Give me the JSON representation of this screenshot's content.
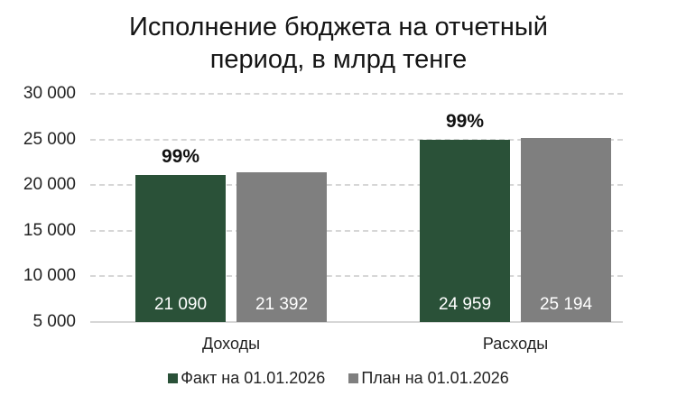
{
  "chart_data": {
    "type": "bar",
    "title": "Исполнение бюджета на отчетный период, в млрд тенге",
    "title_lines": [
      "Исполнение бюджета на отчетный",
      "период, в млрд тенге"
    ],
    "categories": [
      "Доходы",
      "Расходы"
    ],
    "series": [
      {
        "name": "Факт на 01.01.2026",
        "color": "#2a5138",
        "values": [
          21090,
          24959
        ],
        "labels": [
          "21 090",
          "24 959"
        ]
      },
      {
        "name": "План на 01.01.2026",
        "color": "#7f7f7f",
        "values": [
          21392,
          25194
        ],
        "labels": [
          "21 392",
          "25 194"
        ]
      }
    ],
    "annotations": [
      {
        "category": "Доходы",
        "text": "99%"
      },
      {
        "category": "Расходы",
        "text": "99%"
      }
    ],
    "xlabel": "",
    "ylabel": "",
    "ylim": [
      5000,
      30000
    ],
    "yticks": [
      5000,
      10000,
      15000,
      20000,
      25000,
      30000
    ],
    "ytick_labels": [
      "5 000",
      "10 000",
      "15 000",
      "20 000",
      "25 000",
      "30 000"
    ],
    "grid": true,
    "legend_position": "bottom"
  }
}
